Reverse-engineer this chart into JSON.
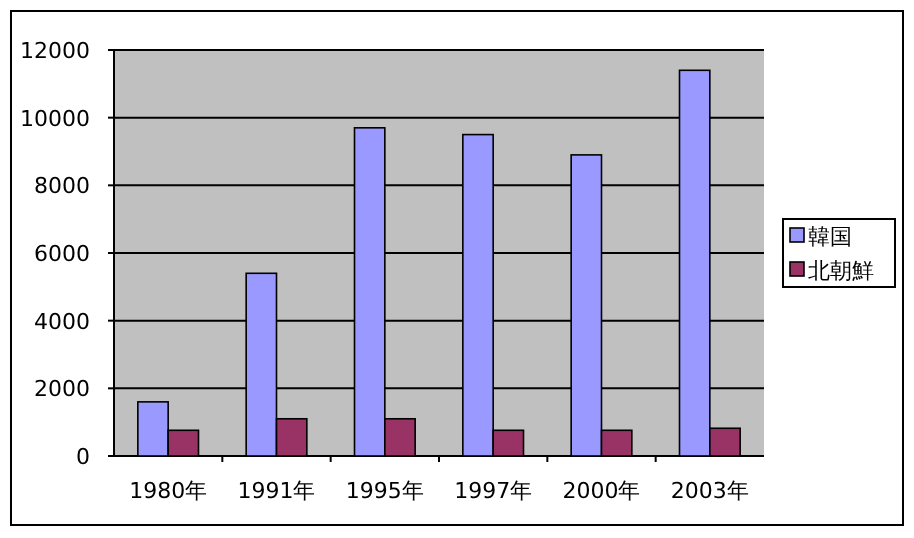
{
  "chart_data": {
    "type": "bar",
    "categories": [
      "1980年",
      "1991年",
      "1995年",
      "1997年",
      "2000年",
      "2003年"
    ],
    "series": [
      {
        "name": "韓国",
        "color": "#9999ff",
        "values": [
          1600,
          5400,
          9700,
          9500,
          8900,
          11400
        ]
      },
      {
        "name": "北朝鮮",
        "color": "#993366",
        "values": [
          760,
          1100,
          1100,
          760,
          760,
          820
        ]
      }
    ],
    "ylim": [
      0,
      12000
    ],
    "yticks": [
      0,
      2000,
      4000,
      6000,
      8000,
      10000,
      12000
    ],
    "grid": "y",
    "legend": "right"
  }
}
